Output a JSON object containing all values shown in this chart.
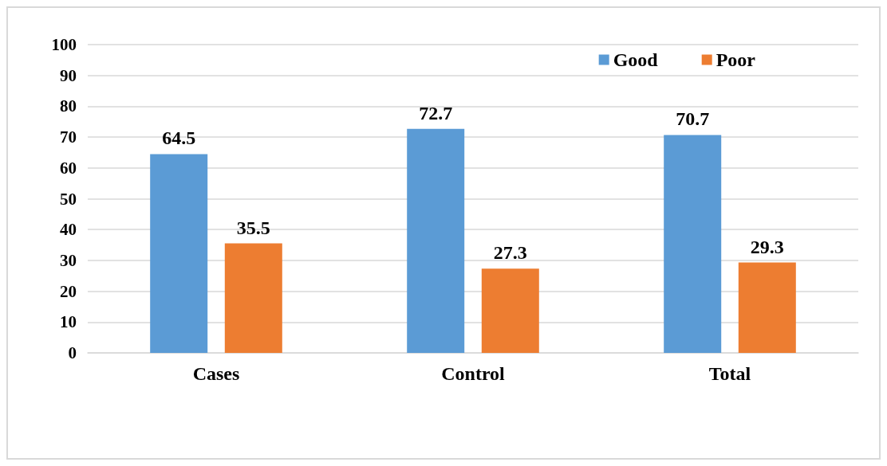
{
  "chart_data": {
    "type": "bar",
    "categories": [
      "Cases",
      "Control",
      "Total"
    ],
    "series": [
      {
        "name": "Good",
        "color": "#5b9bd5",
        "values": [
          64.5,
          72.7,
          70.7
        ]
      },
      {
        "name": "Poor",
        "color": "#ed7d31",
        "values": [
          35.5,
          27.3,
          29.3
        ]
      }
    ],
    "ylim": [
      0,
      100
    ],
    "yticks": [
      0,
      10,
      20,
      30,
      40,
      50,
      60,
      70,
      80,
      90,
      100
    ],
    "grid": "y",
    "legend": "top right",
    "data_labels": true
  }
}
